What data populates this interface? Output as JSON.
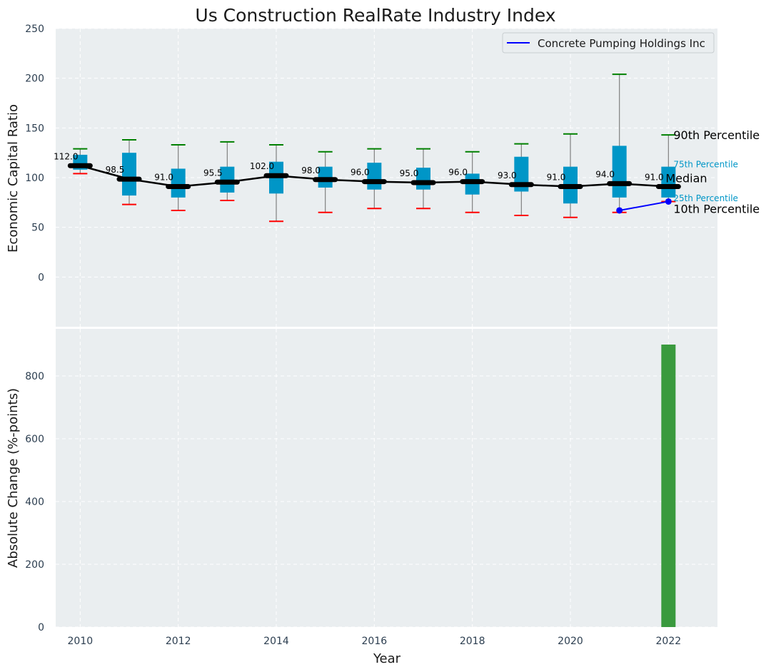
{
  "title": "Us Construction RealRate Industry Index",
  "colors": {
    "panel_bg": "#eaeef0",
    "box_fill": "#0096c7",
    "whisker": "#808080",
    "cap_top": "#008000",
    "cap_bottom": "#ff0000",
    "median": "#000000",
    "company_line": "#0000ff",
    "bar_fill": "#3a9a3e",
    "tick_text": "#2c3e50",
    "annotation_cyan": "#0096c7"
  },
  "chart_data": [
    {
      "type": "box",
      "ylabel": "Economic Capital Ratio",
      "ylim": [
        -50,
        250
      ],
      "yticks": [
        0,
        50,
        100,
        150,
        200,
        250
      ],
      "xlim": [
        2009.5,
        2023.0
      ],
      "grid": true,
      "legend_position": "top-right",
      "years": [
        2010,
        2011,
        2012,
        2013,
        2014,
        2015,
        2016,
        2017,
        2018,
        2019,
        2020,
        2021,
        2022
      ],
      "p10": [
        104,
        73,
        67,
        77,
        56,
        65,
        69,
        69,
        65,
        62,
        60,
        65,
        76
      ],
      "p25": [
        108,
        82,
        80,
        85,
        84,
        90,
        88,
        88,
        83,
        86,
        74,
        80,
        80
      ],
      "median": [
        112.0,
        98.5,
        91.0,
        95.5,
        102.0,
        98.0,
        96.0,
        95.0,
        96.0,
        93.0,
        91.0,
        94.0,
        91.0
      ],
      "median_labels": [
        "112.0",
        "98.5",
        "91.0",
        "95.5",
        "102.0",
        "98.0",
        "96.0",
        "95.0",
        "96.0",
        "93.0",
        "91.0",
        "94.0",
        "91.0"
      ],
      "p75": [
        123,
        125,
        109,
        111,
        116,
        111,
        115,
        110,
        104,
        121,
        111,
        132,
        111
      ],
      "p90": [
        129,
        138,
        133,
        136,
        133,
        126,
        129,
        129,
        126,
        134,
        144,
        204,
        143
      ],
      "company": {
        "name": "Concrete Pumping Holdings Inc",
        "x": [
          2021,
          2022
        ],
        "y": [
          67,
          76
        ]
      },
      "annotations": {
        "p90": "90th Percentile",
        "p75": "75th Percentile",
        "median": "Median",
        "p25": "25th Percentile",
        "p10": "10th Percentile"
      }
    },
    {
      "type": "bar",
      "xlabel": "Year",
      "ylabel": "Absolute Change (%-points)",
      "ylim": [
        0,
        950
      ],
      "yticks": [
        0,
        200,
        400,
        600,
        800
      ],
      "xticks": [
        2010,
        2012,
        2014,
        2016,
        2018,
        2020,
        2022
      ],
      "grid": true,
      "categories": [
        2022
      ],
      "values": [
        900
      ]
    }
  ]
}
